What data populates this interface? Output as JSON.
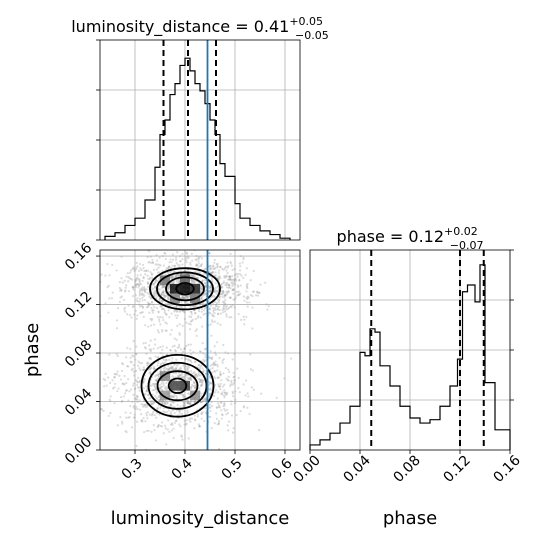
{
  "chart_data": [
    {
      "type": "histogram",
      "parameter": "luminosity_distance",
      "title": {
        "label": "luminosity_distance",
        "value": "0.41",
        "upper": "+0.05",
        "lower": "−0.05"
      },
      "xlim": [
        0.23,
        0.63
      ],
      "bins": [
        {
          "x0": 0.24,
          "x1": 0.26,
          "count": 2
        },
        {
          "x0": 0.26,
          "x1": 0.28,
          "count": 4
        },
        {
          "x0": 0.28,
          "x1": 0.3,
          "count": 8
        },
        {
          "x0": 0.3,
          "x1": 0.32,
          "count": 12
        },
        {
          "x0": 0.32,
          "x1": 0.34,
          "count": 22
        },
        {
          "x0": 0.34,
          "x1": 0.35,
          "count": 40
        },
        {
          "x0": 0.35,
          "x1": 0.36,
          "count": 58
        },
        {
          "x0": 0.36,
          "x1": 0.37,
          "count": 66
        },
        {
          "x0": 0.37,
          "x1": 0.38,
          "count": 80
        },
        {
          "x0": 0.38,
          "x1": 0.39,
          "count": 86
        },
        {
          "x0": 0.39,
          "x1": 0.4,
          "count": 96
        },
        {
          "x0": 0.4,
          "x1": 0.41,
          "count": 100
        },
        {
          "x0": 0.41,
          "x1": 0.42,
          "count": 93
        },
        {
          "x0": 0.42,
          "x1": 0.43,
          "count": 86
        },
        {
          "x0": 0.43,
          "x1": 0.44,
          "count": 82
        },
        {
          "x0": 0.44,
          "x1": 0.45,
          "count": 75
        },
        {
          "x0": 0.45,
          "x1": 0.46,
          "count": 66
        },
        {
          "x0": 0.46,
          "x1": 0.47,
          "count": 58
        },
        {
          "x0": 0.47,
          "x1": 0.48,
          "count": 42
        },
        {
          "x0": 0.48,
          "x1": 0.5,
          "count": 35
        },
        {
          "x0": 0.5,
          "x1": 0.51,
          "count": 20
        },
        {
          "x0": 0.51,
          "x1": 0.53,
          "count": 12
        },
        {
          "x0": 0.53,
          "x1": 0.55,
          "count": 8
        },
        {
          "x0": 0.55,
          "x1": 0.57,
          "count": 5
        },
        {
          "x0": 0.57,
          "x1": 0.59,
          "count": 3
        },
        {
          "x0": 0.59,
          "x1": 0.61,
          "count": 1
        }
      ],
      "quantiles": [
        0.357,
        0.406,
        0.462
      ],
      "truth": 0.445,
      "grid": true
    },
    {
      "type": "histogram",
      "parameter": "phase",
      "title": {
        "label": "phase",
        "value": "0.12",
        "upper": "+0.02",
        "lower": "−0.07"
      },
      "xlim": [
        0.0,
        0.16
      ],
      "xticks": [
        "0.00",
        "0.04",
        "0.08",
        "0.12",
        "0.16"
      ],
      "xlabel": "phase",
      "bins": [
        {
          "x0": 0.0,
          "x1": 0.008,
          "count": 3
        },
        {
          "x0": 0.008,
          "x1": 0.016,
          "count": 6
        },
        {
          "x0": 0.016,
          "x1": 0.024,
          "count": 10
        },
        {
          "x0": 0.024,
          "x1": 0.032,
          "count": 16
        },
        {
          "x0": 0.032,
          "x1": 0.04,
          "count": 26
        },
        {
          "x0": 0.04,
          "x1": 0.044,
          "count": 58
        },
        {
          "x0": 0.044,
          "x1": 0.048,
          "count": 56
        },
        {
          "x0": 0.048,
          "x1": 0.052,
          "count": 72
        },
        {
          "x0": 0.052,
          "x1": 0.056,
          "count": 70
        },
        {
          "x0": 0.056,
          "x1": 0.06,
          "count": 50
        },
        {
          "x0": 0.06,
          "x1": 0.064,
          "count": 50
        },
        {
          "x0": 0.064,
          "x1": 0.072,
          "count": 38
        },
        {
          "x0": 0.072,
          "x1": 0.08,
          "count": 26
        },
        {
          "x0": 0.08,
          "x1": 0.088,
          "count": 19
        },
        {
          "x0": 0.088,
          "x1": 0.096,
          "count": 16
        },
        {
          "x0": 0.096,
          "x1": 0.104,
          "count": 18
        },
        {
          "x0": 0.104,
          "x1": 0.112,
          "count": 26
        },
        {
          "x0": 0.112,
          "x1": 0.118,
          "count": 38
        },
        {
          "x0": 0.118,
          "x1": 0.122,
          "count": 54
        },
        {
          "x0": 0.122,
          "x1": 0.126,
          "count": 94
        },
        {
          "x0": 0.126,
          "x1": 0.132,
          "count": 98
        },
        {
          "x0": 0.132,
          "x1": 0.136,
          "count": 88
        },
        {
          "x0": 0.136,
          "x1": 0.14,
          "count": 110
        },
        {
          "x0": 0.14,
          "x1": 0.148,
          "count": 40
        },
        {
          "x0": 0.148,
          "x1": 0.16,
          "count": 12
        }
      ],
      "quantiles": [
        0.049,
        0.12,
        0.139
      ],
      "grid": true
    },
    {
      "type": "scatter-density",
      "xparam": "luminosity_distance",
      "yparam": "phase",
      "xlim": [
        0.23,
        0.63
      ],
      "ylim": [
        0.0,
        0.165
      ],
      "xticks": [
        "0.3",
        "0.4",
        "0.5",
        "0.6"
      ],
      "yticks": [
        "0.00",
        "0.04",
        "0.08",
        "0.12",
        "0.16"
      ],
      "xlabel": "luminosity_distance",
      "ylabel": "phase",
      "truth_x": 0.445,
      "modes": [
        {
          "cx": 0.4,
          "cy": 0.133,
          "sx": 0.04,
          "sy": 0.008,
          "weight": 0.55
        },
        {
          "cx": 0.385,
          "cy": 0.053,
          "sx": 0.04,
          "sy": 0.011,
          "weight": 0.45
        }
      ],
      "density_cells": [
        {
          "x": 0.38,
          "y": 0.133,
          "level": 0.95
        },
        {
          "x": 0.4,
          "y": 0.133,
          "level": 1.0
        },
        {
          "x": 0.42,
          "y": 0.133,
          "level": 0.85
        },
        {
          "x": 0.36,
          "y": 0.14,
          "level": 0.5
        },
        {
          "x": 0.4,
          "y": 0.141,
          "level": 0.6
        },
        {
          "x": 0.38,
          "y": 0.125,
          "level": 0.45
        },
        {
          "x": 0.42,
          "y": 0.125,
          "level": 0.5
        },
        {
          "x": 0.38,
          "y": 0.053,
          "level": 0.7
        },
        {
          "x": 0.4,
          "y": 0.053,
          "level": 0.75
        },
        {
          "x": 0.36,
          "y": 0.061,
          "level": 0.45
        },
        {
          "x": 0.42,
          "y": 0.045,
          "level": 0.4
        },
        {
          "x": 0.36,
          "y": 0.045,
          "level": 0.35
        }
      ],
      "contours": [
        {
          "mode": 0,
          "rx": 0.0175,
          "ry": 0.0048
        },
        {
          "mode": 0,
          "rx": 0.038,
          "ry": 0.0095
        },
        {
          "mode": 0,
          "rx": 0.056,
          "ry": 0.0135
        },
        {
          "mode": 0,
          "rx": 0.07,
          "ry": 0.017
        },
        {
          "mode": 1,
          "rx": 0.0175,
          "ry": 0.006
        },
        {
          "mode": 1,
          "rx": 0.04,
          "ry": 0.012
        },
        {
          "mode": 1,
          "rx": 0.058,
          "ry": 0.019
        },
        {
          "mode": 1,
          "rx": 0.072,
          "ry": 0.0255
        }
      ]
    }
  ]
}
